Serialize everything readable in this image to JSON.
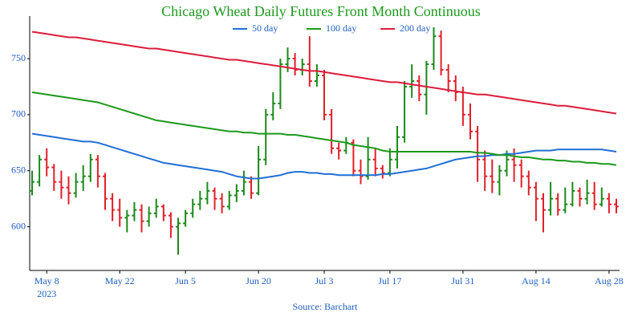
{
  "chart_data": {
    "type": "ohlc",
    "title": "Chicago Wheat Daily Futures Front Month Continuous",
    "source": "Source: Barchart",
    "categories": [
      "2023-05-04",
      "2023-05-05",
      "2023-05-08",
      "2023-05-09",
      "2023-05-10",
      "2023-05-11",
      "2023-05-12",
      "2023-05-15",
      "2023-05-16",
      "2023-05-17",
      "2023-05-18",
      "2023-05-19",
      "2023-05-22",
      "2023-05-23",
      "2023-05-24",
      "2023-05-25",
      "2023-05-26",
      "2023-05-30",
      "2023-05-31",
      "2023-06-01",
      "2023-06-02",
      "2023-06-05",
      "2023-06-06",
      "2023-06-07",
      "2023-06-08",
      "2023-06-09",
      "2023-06-12",
      "2023-06-13",
      "2023-06-14",
      "2023-06-15",
      "2023-06-16",
      "2023-06-20",
      "2023-06-21",
      "2023-06-22",
      "2023-06-23",
      "2023-06-26",
      "2023-06-27",
      "2023-06-28",
      "2023-06-29",
      "2023-06-30",
      "2023-07-03",
      "2023-07-05",
      "2023-07-06",
      "2023-07-07",
      "2023-07-10",
      "2023-07-11",
      "2023-07-12",
      "2023-07-13",
      "2023-07-14",
      "2023-07-17",
      "2023-07-18",
      "2023-07-19",
      "2023-07-20",
      "2023-07-21",
      "2023-07-24",
      "2023-07-25",
      "2023-07-26",
      "2023-07-27",
      "2023-07-28",
      "2023-07-31",
      "2023-08-01",
      "2023-08-02",
      "2023-08-03",
      "2023-08-04",
      "2023-08-07",
      "2023-08-08",
      "2023-08-09",
      "2023-08-10",
      "2023-08-11",
      "2023-08-14",
      "2023-08-15",
      "2023-08-16",
      "2023-08-17",
      "2023-08-18",
      "2023-08-21",
      "2023-08-22",
      "2023-08-23",
      "2023-08-24",
      "2023-08-25",
      "2023-08-28",
      "2023-08-29"
    ],
    "open": [
      632,
      640,
      660,
      653,
      640,
      635,
      630,
      640,
      645,
      660,
      645,
      625,
      615,
      608,
      610,
      615,
      605,
      612,
      618,
      610,
      600,
      603,
      612,
      620,
      625,
      632,
      625,
      618,
      628,
      632,
      640,
      630,
      660,
      700,
      710,
      745,
      750,
      740,
      745,
      730,
      735,
      700,
      670,
      668,
      675,
      650,
      645,
      660,
      652,
      648,
      660,
      680,
      725,
      730,
      718,
      745,
      770,
      740,
      730,
      720,
      700,
      685,
      660,
      645,
      640,
      650,
      660,
      655,
      645,
      635,
      625,
      615,
      625,
      615,
      620,
      632,
      625,
      630,
      620,
      625,
      620
    ],
    "high": [
      650,
      664,
      670,
      656,
      650,
      645,
      648,
      655,
      665,
      664,
      648,
      630,
      625,
      615,
      622,
      620,
      618,
      625,
      620,
      613,
      608,
      615,
      625,
      632,
      640,
      635,
      630,
      632,
      638,
      650,
      645,
      672,
      705,
      720,
      750,
      760,
      755,
      750,
      770,
      745,
      740,
      705,
      675,
      680,
      678,
      660,
      680,
      670,
      655,
      670,
      690,
      730,
      745,
      735,
      748,
      778,
      775,
      745,
      735,
      725,
      710,
      690,
      668,
      660,
      655,
      668,
      670,
      660,
      650,
      640,
      630,
      640,
      630,
      635,
      640,
      635,
      642,
      640,
      635,
      630,
      625
    ],
    "low": [
      628,
      636,
      645,
      632,
      625,
      620,
      626,
      632,
      640,
      635,
      615,
      605,
      600,
      595,
      605,
      595,
      600,
      608,
      605,
      590,
      575,
      600,
      608,
      615,
      620,
      615,
      612,
      615,
      622,
      628,
      625,
      628,
      655,
      695,
      705,
      738,
      735,
      735,
      725,
      725,
      695,
      665,
      660,
      665,
      645,
      638,
      642,
      645,
      643,
      645,
      652,
      675,
      715,
      712,
      700,
      740,
      735,
      720,
      712,
      690,
      678,
      640,
      632,
      630,
      628,
      645,
      640,
      635,
      628,
      605,
      595,
      610,
      610,
      612,
      618,
      618,
      620,
      615,
      618,
      612,
      612
    ],
    "close": [
      640,
      660,
      653,
      640,
      635,
      630,
      640,
      645,
      660,
      645,
      625,
      615,
      608,
      610,
      615,
      605,
      612,
      618,
      610,
      600,
      603,
      612,
      620,
      625,
      632,
      625,
      618,
      628,
      632,
      640,
      630,
      660,
      700,
      710,
      745,
      750,
      740,
      745,
      730,
      735,
      700,
      670,
      668,
      675,
      650,
      645,
      660,
      652,
      648,
      660,
      680,
      725,
      730,
      718,
      745,
      770,
      740,
      730,
      720,
      700,
      685,
      660,
      645,
      640,
      650,
      660,
      655,
      645,
      635,
      625,
      615,
      625,
      615,
      620,
      632,
      625,
      630,
      620,
      625,
      620,
      618
    ],
    "up_color": "#1a8a1a",
    "down_color": "#e0202a",
    "series": [
      {
        "name": "50 day",
        "color": "#1f6fd6",
        "values": [
          683,
          682,
          681,
          680,
          679,
          678,
          677,
          676,
          676,
          675,
          673,
          671,
          669,
          667,
          665,
          663,
          661,
          659,
          657,
          656,
          655,
          654,
          653,
          652,
          651,
          650,
          649,
          647,
          645,
          644,
          643,
          643,
          644,
          645,
          646,
          648,
          649,
          649,
          648,
          648,
          647,
          647,
          646,
          646,
          646,
          646,
          646,
          646,
          647,
          647,
          648,
          649,
          650,
          651,
          652,
          654,
          656,
          658,
          660,
          661,
          662,
          663,
          663,
          664,
          664,
          665,
          665,
          666,
          667,
          668,
          668,
          668,
          669,
          669,
          669,
          669,
          669,
          669,
          669,
          668,
          667
        ]
      },
      {
        "name": "100 day",
        "color": "#1a9a1a",
        "values": [
          720,
          719,
          718,
          717,
          716,
          715,
          714,
          713,
          712,
          711,
          709,
          707,
          705,
          703,
          701,
          699,
          697,
          695,
          694,
          693,
          692,
          691,
          690,
          689,
          688,
          687,
          686,
          685,
          685,
          684,
          684,
          683,
          683,
          683,
          683,
          682,
          682,
          681,
          680,
          679,
          678,
          677,
          676,
          675,
          673,
          672,
          671,
          670,
          668,
          667,
          667,
          667,
          667,
          667,
          667,
          667,
          667,
          667,
          667,
          667,
          667,
          666,
          666,
          665,
          664,
          664,
          663,
          662,
          662,
          661,
          660,
          660,
          659,
          659,
          658,
          658,
          657,
          657,
          656,
          656,
          655
        ]
      },
      {
        "name": "200 day",
        "color": "#dc1c3a",
        "values": [
          774,
          773,
          772,
          771,
          770,
          769,
          769,
          768,
          767,
          766,
          765,
          764,
          763,
          762,
          761,
          760,
          759,
          759,
          758,
          757,
          756,
          755,
          754,
          753,
          752,
          751,
          750,
          749,
          749,
          748,
          747,
          746,
          745,
          744,
          743,
          742,
          741,
          740,
          739,
          739,
          738,
          737,
          736,
          735,
          734,
          733,
          732,
          731,
          730,
          729,
          729,
          728,
          727,
          726,
          725,
          724,
          723,
          722,
          721,
          720,
          719,
          718,
          718,
          717,
          716,
          715,
          714,
          713,
          712,
          711,
          710,
          709,
          708,
          708,
          707,
          706,
          705,
          704,
          703,
          702,
          701
        ]
      }
    ],
    "xticks": [
      {
        "value": "2023-05-08",
        "label": "May 8"
      },
      {
        "value": "2023-05-22",
        "label": "May 22"
      },
      {
        "value": "2023-06-05",
        "label": "Jun 5"
      },
      {
        "value": "2023-06-20",
        "label": "Jun 20"
      },
      {
        "value": "2023-07-03",
        "label": "Jul 3"
      },
      {
        "value": "2023-07-17",
        "label": "Jul 17"
      },
      {
        "value": "2023-07-31",
        "label": "Jul 31"
      },
      {
        "value": "2023-08-14",
        "label": "Aug 14"
      },
      {
        "value": "2023-08-28",
        "label": "Aug 28"
      }
    ],
    "x_year_label": "2023",
    "ylim": [
      561,
      788
    ],
    "yticks": [
      600,
      650,
      700,
      750
    ],
    "grid": false,
    "legend": "top"
  }
}
